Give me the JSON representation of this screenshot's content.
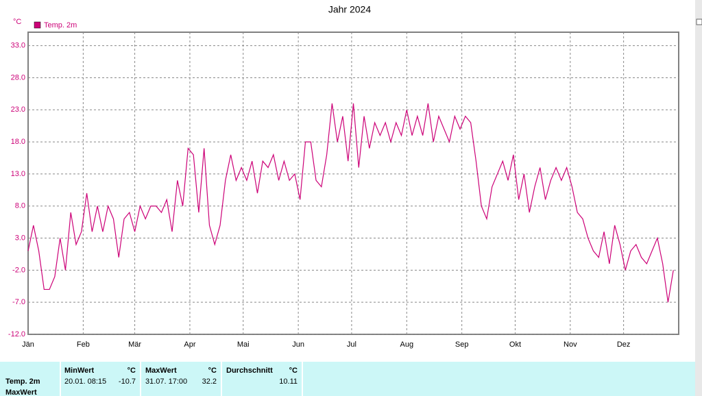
{
  "chart_data": {
    "type": "line",
    "title": "Jahr 2024",
    "y_unit": "°C",
    "xlim": [
      0,
      366
    ],
    "xticks": [
      {
        "value": 0,
        "label": "Jän"
      },
      {
        "value": 31,
        "label": "Feb"
      },
      {
        "value": 60,
        "label": "Mär"
      },
      {
        "value": 91,
        "label": "Apr"
      },
      {
        "value": 121,
        "label": "Mai"
      },
      {
        "value": 152,
        "label": "Jun"
      },
      {
        "value": 182,
        "label": "Jul"
      },
      {
        "value": 213,
        "label": "Aug"
      },
      {
        "value": 244,
        "label": "Sep"
      },
      {
        "value": 274,
        "label": "Okt"
      },
      {
        "value": 305,
        "label": "Nov"
      },
      {
        "value": 335,
        "label": "Dez"
      }
    ],
    "ylim": [
      -12,
      35.1
    ],
    "yticks": [
      {
        "value": -12,
        "label": "-12.0"
      },
      {
        "value": -7,
        "label": "-7.0"
      },
      {
        "value": -2,
        "label": "-2.0"
      },
      {
        "value": 3,
        "label": "3.0"
      },
      {
        "value": 8,
        "label": "8.0"
      },
      {
        "value": 13,
        "label": "13.0"
      },
      {
        "value": 18,
        "label": "18.0"
      },
      {
        "value": 23,
        "label": "23.0"
      },
      {
        "value": 28,
        "label": "28.0"
      },
      {
        "value": 33,
        "label": "33.0"
      }
    ],
    "grid": true,
    "legend": "top-left",
    "x": [
      0,
      3,
      6,
      9,
      12,
      15,
      18,
      21,
      24,
      27,
      30,
      33,
      36,
      39,
      42,
      45,
      48,
      51,
      54,
      57,
      60,
      63,
      66,
      69,
      72,
      75,
      78,
      81,
      84,
      87,
      90,
      93,
      96,
      99,
      102,
      105,
      108,
      111,
      114,
      117,
      120,
      123,
      126,
      129,
      132,
      135,
      138,
      141,
      144,
      147,
      150,
      153,
      156,
      159,
      162,
      165,
      168,
      171,
      174,
      177,
      180,
      183,
      186,
      189,
      192,
      195,
      198,
      201,
      204,
      207,
      210,
      213,
      216,
      219,
      222,
      225,
      228,
      231,
      234,
      237,
      240,
      243,
      246,
      249,
      252,
      255,
      258,
      261,
      264,
      267,
      270,
      273,
      276,
      279,
      282,
      285,
      288,
      291,
      294,
      297,
      300,
      303,
      306,
      309,
      312,
      315,
      318,
      321,
      324,
      327,
      330,
      333,
      336,
      339,
      342,
      345,
      348,
      351,
      354,
      357,
      360,
      363
    ],
    "series": [
      {
        "name": "Temp. 2m",
        "color": "#cc0077",
        "values": [
          1,
          5,
          1,
          -5,
          -5,
          -3,
          3,
          -2,
          7,
          2,
          4,
          10,
          4,
          8,
          4,
          8,
          6,
          0,
          6,
          7,
          4,
          8,
          6,
          8,
          8,
          7,
          9,
          4,
          12,
          8,
          17,
          16,
          7,
          17,
          5,
          2,
          5,
          12,
          16,
          12,
          14,
          12,
          15,
          10,
          15,
          14,
          16,
          12,
          15,
          12,
          13,
          9,
          18,
          18,
          12,
          11,
          16,
          24,
          18,
          22,
          15,
          24,
          14,
          22,
          17,
          21,
          19,
          21,
          18,
          21,
          19,
          23,
          19,
          22,
          19,
          24,
          18,
          22,
          20,
          18,
          22,
          20,
          22,
          21,
          15,
          8,
          6,
          11,
          13,
          15,
          12,
          16,
          9,
          13,
          7,
          11,
          14,
          9,
          12,
          14,
          12,
          14,
          11,
          7,
          6,
          3,
          1,
          0,
          4,
          -1,
          5,
          2,
          -2,
          1,
          2,
          0,
          -1,
          1,
          3,
          -1,
          -7,
          -2
        ]
      }
    ]
  },
  "table": {
    "row_labels": [
      "Temp. 2m",
      "MaxWert"
    ],
    "columns": [
      {
        "header": "MinWert",
        "unit": "°C",
        "time": "20.01.  08:15",
        "value": -10.7
      },
      {
        "header": "MaxWert",
        "unit": "°C",
        "time": "31.07.  17:00",
        "value": 32.2
      },
      {
        "header": "Durchschnitt",
        "unit": "°C",
        "value": 10.11
      }
    ]
  }
}
